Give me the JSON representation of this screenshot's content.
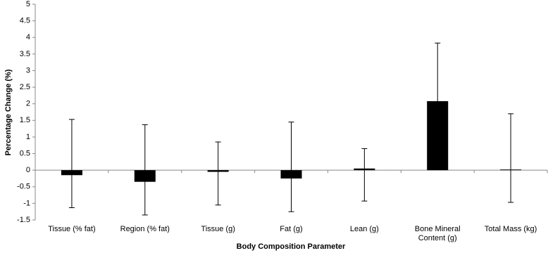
{
  "chart_data": {
    "type": "bar",
    "categories": [
      "Tissue (% fat)",
      "Region (% fat)",
      "Tissue (g)",
      "Fat (g)",
      "Lean (g)",
      "Bone Mineral Content (g)",
      "Total Mass (kg)"
    ],
    "values": [
      -0.15,
      -0.35,
      -0.05,
      -0.25,
      0.05,
      2.08,
      0.02
    ],
    "errors_plus": [
      1.68,
      1.72,
      0.9,
      1.7,
      0.6,
      1.75,
      1.68
    ],
    "errors_minus": [
      0.98,
      1.0,
      1.0,
      1.0,
      0.98,
      null,
      0.99
    ],
    "color": "#000000",
    "x_label": "Body Composition Parameter",
    "y_label": "Percentage Change (%)",
    "ylim": [
      -1.5,
      5
    ],
    "yticks": [
      -1.5,
      -1,
      -0.5,
      0,
      0.5,
      1,
      1.5,
      2,
      2.5,
      3,
      3.5,
      4,
      4.5,
      5
    ],
    "grid": false
  }
}
